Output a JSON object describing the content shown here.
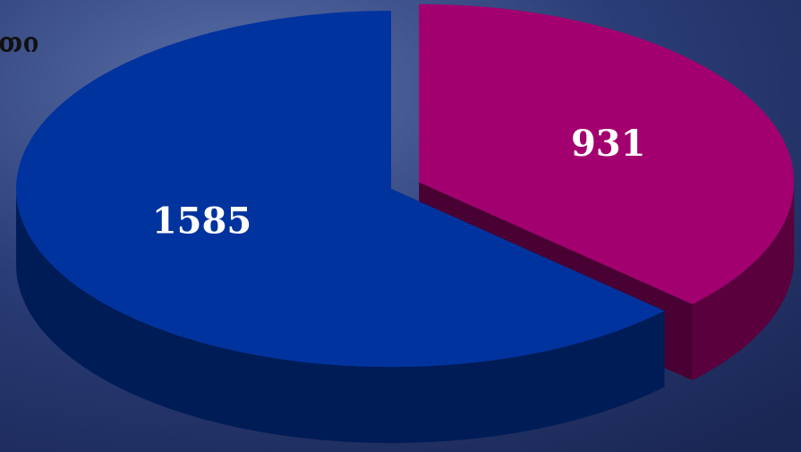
{
  "chart_data": {
    "type": "pie",
    "annotation": "თი",
    "categories": [
      null,
      null
    ],
    "values": [
      931,
      1585
    ],
    "colors": [
      "#a3006f",
      "#00339e"
    ],
    "start_angle": -90,
    "exploded": [
      true,
      false
    ]
  }
}
